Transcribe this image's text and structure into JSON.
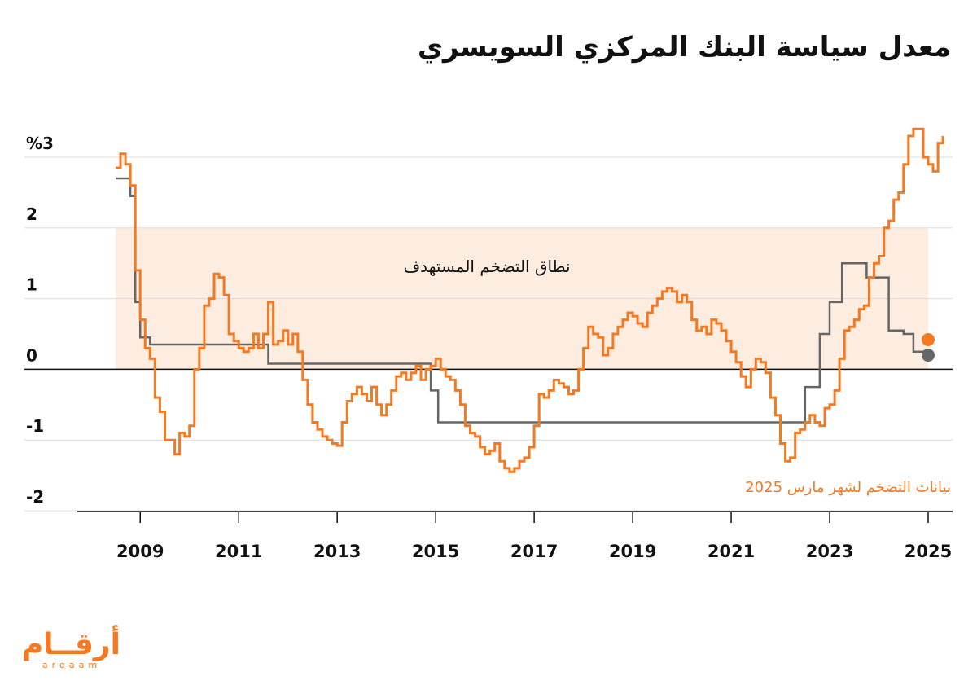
{
  "title": "معدل سياسة البنك المركزي السويسري",
  "chart_data": {
    "type": "line",
    "title": "معدل سياسة البنك المركزي السويسري",
    "xlabel": "",
    "ylabel": "",
    "xlim": [
      2007.8,
      2025.35
    ],
    "ylim": [
      -2,
      3
    ],
    "x_ticks": [
      2009,
      2011,
      2013,
      2015,
      2017,
      2019,
      2021,
      2023,
      2025
    ],
    "y_ticks": [
      {
        "value": 3,
        "label": "%3"
      },
      {
        "value": 2,
        "label": "2"
      },
      {
        "value": 1,
        "label": "1"
      },
      {
        "value": 0,
        "label": "0"
      },
      {
        "value": -1,
        "label": "-1"
      },
      {
        "value": -2,
        "label": "-2"
      }
    ],
    "target_band": {
      "from": 0,
      "to": 2,
      "x_from": 2008.5,
      "x_to": 2025.0,
      "label": "نطاق التضخم المستهدف"
    },
    "annotation": "بيانات التضخم لشهر مارس 2025",
    "series": [
      {
        "key": "policy",
        "color": "#666666",
        "points": [
          [
            2008.5,
            2.7
          ],
          [
            2008.8,
            2.45
          ],
          [
            2008.9,
            0.95
          ],
          [
            2009.0,
            0.45
          ],
          [
            2009.2,
            0.35
          ],
          [
            2011.6,
            0.08
          ],
          [
            2014.9,
            -0.3
          ],
          [
            2015.05,
            -0.75
          ],
          [
            2022.5,
            -0.25
          ],
          [
            2022.8,
            0.5
          ],
          [
            2023.0,
            0.95
          ],
          [
            2023.25,
            1.5
          ],
          [
            2023.75,
            1.3
          ],
          [
            2024.2,
            0.55
          ],
          [
            2024.5,
            0.5
          ],
          [
            2024.7,
            0.25
          ],
          [
            2025.0,
            0.2
          ]
        ]
      },
      {
        "key": "inflation",
        "color": "#f47920",
        "points": [
          [
            2008.5,
            2.85
          ],
          [
            2008.6,
            3.05
          ],
          [
            2008.7,
            2.9
          ],
          [
            2008.8,
            2.6
          ],
          [
            2008.9,
            1.4
          ],
          [
            2009.0,
            0.7
          ],
          [
            2009.1,
            0.3
          ],
          [
            2009.2,
            0.15
          ],
          [
            2009.3,
            -0.4
          ],
          [
            2009.4,
            -0.6
          ],
          [
            2009.5,
            -1.0
          ],
          [
            2009.6,
            -1.0
          ],
          [
            2009.7,
            -1.2
          ],
          [
            2009.8,
            -0.9
          ],
          [
            2009.9,
            -0.95
          ],
          [
            2010.0,
            -0.8
          ],
          [
            2010.1,
            0.0
          ],
          [
            2010.2,
            0.3
          ],
          [
            2010.3,
            0.9
          ],
          [
            2010.4,
            1.0
          ],
          [
            2010.5,
            1.35
          ],
          [
            2010.6,
            1.3
          ],
          [
            2010.7,
            1.05
          ],
          [
            2010.8,
            0.5
          ],
          [
            2010.9,
            0.4
          ],
          [
            2011.0,
            0.3
          ],
          [
            2011.1,
            0.25
          ],
          [
            2011.2,
            0.3
          ],
          [
            2011.3,
            0.5
          ],
          [
            2011.4,
            0.3
          ],
          [
            2011.5,
            0.5
          ],
          [
            2011.6,
            0.95
          ],
          [
            2011.7,
            0.35
          ],
          [
            2011.8,
            0.4
          ],
          [
            2011.9,
            0.55
          ],
          [
            2012.0,
            0.35
          ],
          [
            2012.1,
            0.5
          ],
          [
            2012.2,
            0.25
          ],
          [
            2012.3,
            -0.15
          ],
          [
            2012.4,
            -0.5
          ],
          [
            2012.5,
            -0.75
          ],
          [
            2012.6,
            -0.85
          ],
          [
            2012.7,
            -0.95
          ],
          [
            2012.8,
            -1.0
          ],
          [
            2012.9,
            -1.05
          ],
          [
            2013.0,
            -1.08
          ],
          [
            2013.1,
            -0.75
          ],
          [
            2013.2,
            -0.45
          ],
          [
            2013.3,
            -0.35
          ],
          [
            2013.4,
            -0.25
          ],
          [
            2013.5,
            -0.35
          ],
          [
            2013.6,
            -0.45
          ],
          [
            2013.7,
            -0.25
          ],
          [
            2013.8,
            -0.5
          ],
          [
            2013.9,
            -0.65
          ],
          [
            2014.0,
            -0.5
          ],
          [
            2014.1,
            -0.3
          ],
          [
            2014.2,
            -0.1
          ],
          [
            2014.3,
            -0.05
          ],
          [
            2014.4,
            -0.15
          ],
          [
            2014.5,
            -0.05
          ],
          [
            2014.6,
            0.05
          ],
          [
            2014.7,
            -0.15
          ],
          [
            2014.8,
            0.0
          ],
          [
            2014.9,
            0.05
          ],
          [
            2015.0,
            0.15
          ],
          [
            2015.1,
            0.0
          ],
          [
            2015.2,
            -0.1
          ],
          [
            2015.3,
            -0.15
          ],
          [
            2015.4,
            -0.3
          ],
          [
            2015.5,
            -0.5
          ],
          [
            2015.6,
            -0.8
          ],
          [
            2015.7,
            -0.9
          ],
          [
            2015.8,
            -0.95
          ],
          [
            2015.9,
            -1.1
          ],
          [
            2016.0,
            -1.2
          ],
          [
            2016.1,
            -1.15
          ],
          [
            2016.2,
            -1.05
          ],
          [
            2016.3,
            -1.3
          ],
          [
            2016.4,
            -1.4
          ],
          [
            2016.5,
            -1.45
          ],
          [
            2016.6,
            -1.4
          ],
          [
            2016.7,
            -1.3
          ],
          [
            2016.8,
            -1.25
          ],
          [
            2016.9,
            -1.1
          ],
          [
            2017.0,
            -0.8
          ],
          [
            2017.1,
            -0.35
          ],
          [
            2017.2,
            -0.4
          ],
          [
            2017.3,
            -0.3
          ],
          [
            2017.4,
            -0.15
          ],
          [
            2017.5,
            -0.2
          ],
          [
            2017.6,
            -0.25
          ],
          [
            2017.7,
            -0.35
          ],
          [
            2017.8,
            -0.3
          ],
          [
            2017.9,
            0.0
          ],
          [
            2018.0,
            0.3
          ],
          [
            2018.1,
            0.6
          ],
          [
            2018.2,
            0.5
          ],
          [
            2018.3,
            0.45
          ],
          [
            2018.4,
            0.2
          ],
          [
            2018.5,
            0.3
          ],
          [
            2018.6,
            0.5
          ],
          [
            2018.7,
            0.6
          ],
          [
            2018.8,
            0.7
          ],
          [
            2018.9,
            0.8
          ],
          [
            2019.0,
            0.75
          ],
          [
            2019.1,
            0.65
          ],
          [
            2019.2,
            0.6
          ],
          [
            2019.3,
            0.8
          ],
          [
            2019.4,
            0.9
          ],
          [
            2019.5,
            1.0
          ],
          [
            2019.6,
            1.1
          ],
          [
            2019.7,
            1.15
          ],
          [
            2019.8,
            1.1
          ],
          [
            2019.9,
            0.95
          ],
          [
            2020.0,
            1.05
          ],
          [
            2020.1,
            0.95
          ],
          [
            2020.2,
            0.7
          ],
          [
            2020.3,
            0.55
          ],
          [
            2020.4,
            0.6
          ],
          [
            2020.5,
            0.5
          ],
          [
            2020.6,
            0.7
          ],
          [
            2020.7,
            0.65
          ],
          [
            2020.8,
            0.55
          ],
          [
            2020.9,
            0.4
          ],
          [
            2021.0,
            0.25
          ],
          [
            2021.1,
            0.1
          ],
          [
            2021.2,
            -0.1
          ],
          [
            2021.3,
            -0.25
          ],
          [
            2021.4,
            0.0
          ],
          [
            2021.5,
            0.15
          ],
          [
            2021.6,
            0.1
          ],
          [
            2021.7,
            -0.05
          ],
          [
            2021.8,
            -0.4
          ],
          [
            2021.9,
            -0.65
          ],
          [
            2022.0,
            -1.05
          ],
          [
            2022.1,
            -1.3
          ],
          [
            2022.2,
            -1.25
          ],
          [
            2022.3,
            -0.9
          ],
          [
            2022.4,
            -0.85
          ],
          [
            2022.5,
            -0.75
          ],
          [
            2022.6,
            -0.65
          ],
          [
            2022.7,
            -0.75
          ],
          [
            2022.8,
            -0.8
          ],
          [
            2022.9,
            -0.55
          ],
          [
            2023.0,
            -0.5
          ],
          [
            2023.1,
            -0.3
          ],
          [
            2023.2,
            0.15
          ],
          [
            2023.3,
            0.55
          ],
          [
            2023.4,
            0.6
          ],
          [
            2023.5,
            0.7
          ],
          [
            2023.6,
            0.85
          ],
          [
            2023.7,
            0.9
          ],
          [
            2023.8,
            1.3
          ],
          [
            2023.9,
            1.5
          ],
          [
            2024.0,
            1.6
          ],
          [
            2024.1,
            2.0
          ],
          [
            2024.2,
            2.1
          ],
          [
            2024.3,
            2.4
          ],
          [
            2024.4,
            2.5
          ],
          [
            2024.5,
            2.9
          ],
          [
            2024.6,
            3.3
          ],
          [
            2024.7,
            3.4
          ],
          [
            2024.8,
            3.4
          ],
          [
            2024.9,
            3.0
          ],
          [
            2025.0,
            2.9
          ],
          [
            2025.1,
            2.8
          ],
          [
            2025.2,
            3.2
          ],
          [
            2025.3,
            3.3
          ]
        ]
      }
    ]
  }
}
